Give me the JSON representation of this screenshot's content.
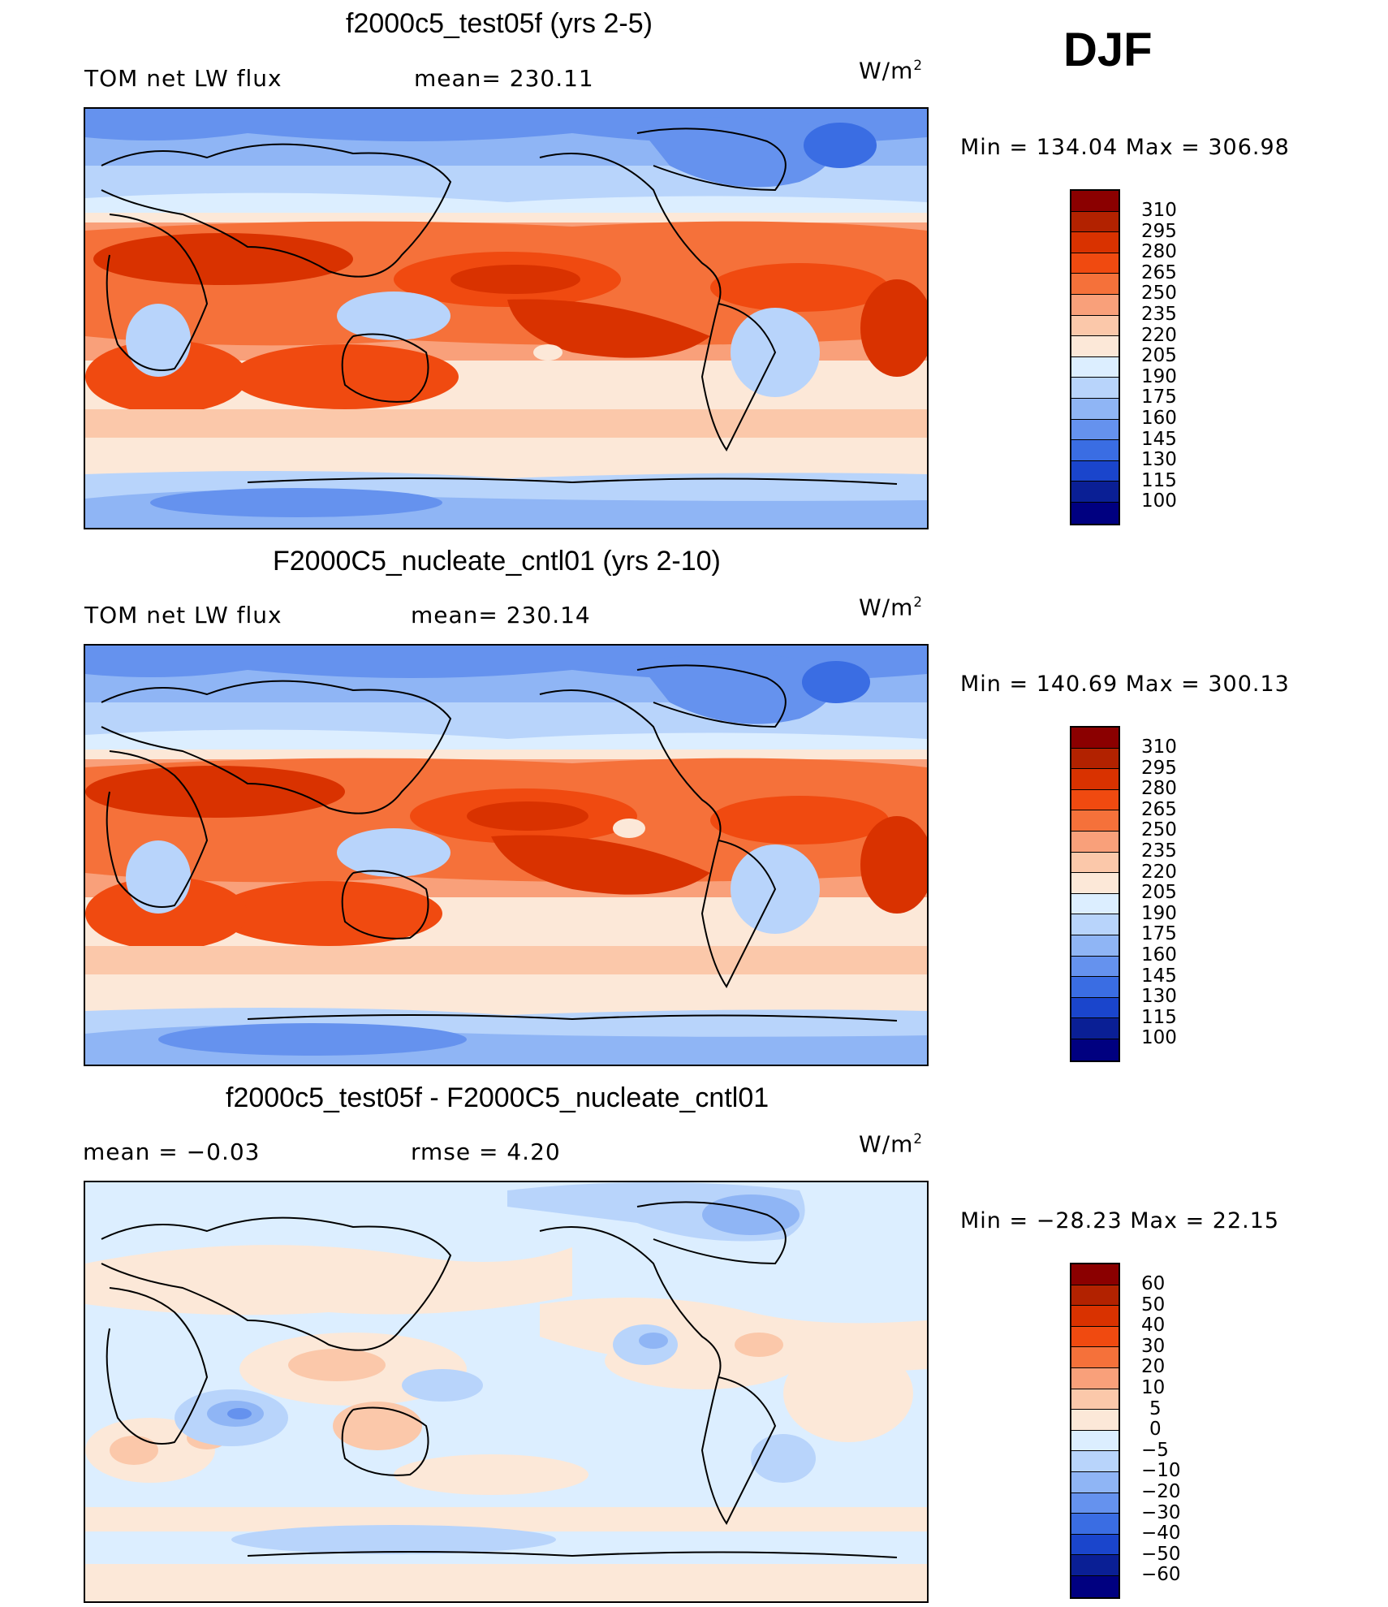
{
  "season": "DJF",
  "panels": [
    {
      "title": "f2000c5_test05f (yrs 2-5)",
      "left_label": "TOM net LW flux",
      "mid_label": "mean= 230.11",
      "units": "W/m",
      "units_sup": "2",
      "minmax": "Min = 134.04 Max = 306.98"
    },
    {
      "title": "F2000C5_nucleate_cntl01 (yrs 2-10)",
      "left_label": "TOM net LW flux",
      "mid_label": "mean= 230.14",
      "units": "W/m",
      "units_sup": "2",
      "minmax": "Min = 140.69 Max = 300.13"
    },
    {
      "title": "f2000c5_test05f - F2000C5_nucleate_cntl01",
      "left_label": "mean =   −0.03",
      "mid_label": "rmse =    4.20",
      "units": "W/m",
      "units_sup": "2",
      "minmax": "Min = −28.23 Max =  22.15"
    }
  ],
  "chart_data": [
    {
      "type": "heatmap",
      "title": "f2000c5_test05f (yrs 2-5)",
      "variable": "TOM net LW flux",
      "units": "W/m2",
      "mean": 230.11,
      "min": 134.04,
      "max": 306.98,
      "levels": [
        "310",
        "295",
        "280",
        "265",
        "250",
        "235",
        "220",
        "205",
        "190",
        "175",
        "160",
        "145",
        "130",
        "115",
        "100"
      ],
      "colors": [
        "#8b0000",
        "#b22200",
        "#d93200",
        "#f04a10",
        "#f5713a",
        "#f9a07a",
        "#fbc8aa",
        "#fce8d8",
        "#dceeff",
        "#b8d4fb",
        "#8fb5f5",
        "#6592ee",
        "#3a6de3",
        "#1a45cc",
        "#0a1f95",
        "#000080"
      ]
    },
    {
      "type": "heatmap",
      "title": "F2000C5_nucleate_cntl01 (yrs 2-10)",
      "variable": "TOM net LW flux",
      "units": "W/m2",
      "mean": 230.14,
      "min": 140.69,
      "max": 300.13,
      "levels": [
        "310",
        "295",
        "280",
        "265",
        "250",
        "235",
        "220",
        "205",
        "190",
        "175",
        "160",
        "145",
        "130",
        "115",
        "100"
      ],
      "colors": [
        "#8b0000",
        "#b22200",
        "#d93200",
        "#f04a10",
        "#f5713a",
        "#f9a07a",
        "#fbc8aa",
        "#fce8d8",
        "#dceeff",
        "#b8d4fb",
        "#8fb5f5",
        "#6592ee",
        "#3a6de3",
        "#1a45cc",
        "#0a1f95",
        "#000080"
      ]
    },
    {
      "type": "heatmap",
      "title": "f2000c5_test05f - F2000C5_nucleate_cntl01",
      "variable": "TOM net LW flux difference",
      "units": "W/m2",
      "mean": -0.03,
      "rmse": 4.2,
      "min": -28.23,
      "max": 22.15,
      "levels": [
        "60",
        "50",
        "40",
        "30",
        "20",
        "10",
        "5",
        "0",
        "−5",
        "−10",
        "−20",
        "−30",
        "−40",
        "−50",
        "−60"
      ],
      "colors": [
        "#8b0000",
        "#b22200",
        "#d93200",
        "#f04a10",
        "#f5713a",
        "#f9a07a",
        "#fbc8aa",
        "#fce8d8",
        "#dceeff",
        "#b8d4fb",
        "#8fb5f5",
        "#6592ee",
        "#3a6de3",
        "#1a45cc",
        "#0a1f95",
        "#000080"
      ]
    }
  ]
}
